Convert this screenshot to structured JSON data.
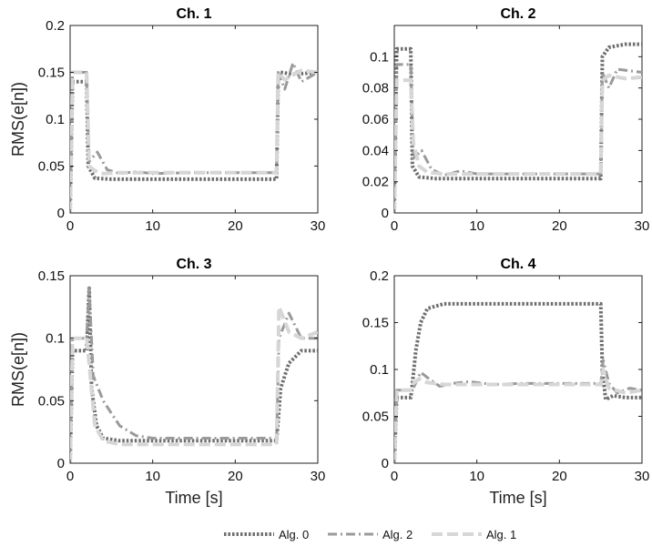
{
  "chart_data": [
    {
      "type": "line",
      "title": "Ch. 1",
      "xlabel": "",
      "ylabel": "RMS(e[n])",
      "xlim": [
        0,
        30
      ],
      "ylim": [
        0,
        0.2
      ],
      "xticks": [
        "0",
        "10",
        "20",
        "30"
      ],
      "xtick_values": [
        0,
        10,
        20,
        30
      ],
      "yticks": [
        "0",
        "0.05",
        "0.1",
        "0.15",
        "0.2"
      ],
      "ytick_values": [
        0,
        0.05,
        0.1,
        0.15,
        0.2
      ],
      "grid": false,
      "series": [
        {
          "name": "Alg. 0",
          "x": [
            0,
            0.3,
            2.0,
            2.2,
            3,
            5,
            10,
            15,
            20,
            25,
            25.2,
            25.5,
            27,
            30
          ],
          "y": [
            0,
            0.14,
            0.14,
            0.05,
            0.037,
            0.036,
            0.036,
            0.036,
            0.036,
            0.036,
            0.14,
            0.15,
            0.148,
            0.15
          ]
        },
        {
          "name": "Alg. 2",
          "x": [
            0,
            0.3,
            2.0,
            2.3,
            3.3,
            4.5,
            6,
            8,
            10,
            15,
            20,
            25,
            25.2,
            26,
            27,
            28,
            30
          ],
          "y": [
            0,
            0.15,
            0.15,
            0.055,
            0.065,
            0.046,
            0.042,
            0.044,
            0.042,
            0.043,
            0.043,
            0.043,
            0.15,
            0.132,
            0.16,
            0.14,
            0.15
          ]
        },
        {
          "name": "Alg. 1",
          "x": [
            0,
            0.3,
            2.0,
            2.3,
            3,
            4,
            6,
            10,
            15,
            20,
            25,
            25.2,
            26,
            28,
            30
          ],
          "y": [
            0,
            0.15,
            0.15,
            0.05,
            0.045,
            0.042,
            0.043,
            0.043,
            0.043,
            0.043,
            0.043,
            0.15,
            0.142,
            0.152,
            0.15
          ]
        }
      ]
    },
    {
      "type": "line",
      "title": "Ch. 2",
      "xlabel": "",
      "ylabel": "",
      "xlim": [
        0,
        30
      ],
      "ylim": [
        0,
        0.12
      ],
      "xticks": [
        "0",
        "10",
        "20",
        "30"
      ],
      "xtick_values": [
        0,
        10,
        20,
        30
      ],
      "yticks": [
        "0",
        "0.02",
        "0.04",
        "0.06",
        "0.08",
        "0.1"
      ],
      "ytick_values": [
        0,
        0.02,
        0.04,
        0.06,
        0.08,
        0.1
      ],
      "grid": false,
      "series": [
        {
          "name": "Alg. 0",
          "x": [
            0,
            0.3,
            2.0,
            2.2,
            3,
            5,
            10,
            15,
            20,
            25,
            25.2,
            26,
            28,
            30
          ],
          "y": [
            0,
            0.105,
            0.105,
            0.03,
            0.023,
            0.022,
            0.022,
            0.022,
            0.022,
            0.022,
            0.1,
            0.106,
            0.108,
            0.108
          ]
        },
        {
          "name": "Alg. 2",
          "x": [
            0,
            0.3,
            2.0,
            2.3,
            3.3,
            4.5,
            6,
            8,
            10,
            15,
            20,
            25,
            25.2,
            26,
            27,
            30
          ],
          "y": [
            0,
            0.095,
            0.095,
            0.035,
            0.04,
            0.028,
            0.024,
            0.027,
            0.025,
            0.025,
            0.025,
            0.025,
            0.09,
            0.08,
            0.092,
            0.09
          ]
        },
        {
          "name": "Alg. 1",
          "x": [
            0,
            0.3,
            2.0,
            2.3,
            3,
            4,
            6,
            10,
            15,
            20,
            25,
            25.2,
            26,
            28,
            30
          ],
          "y": [
            0,
            0.085,
            0.085,
            0.045,
            0.03,
            0.026,
            0.025,
            0.025,
            0.025,
            0.025,
            0.025,
            0.085,
            0.088,
            0.086,
            0.087
          ]
        }
      ]
    },
    {
      "type": "line",
      "title": "Ch. 3",
      "xlabel": "Time [s]",
      "ylabel": "RMS(e[n])",
      "xlim": [
        0,
        30
      ],
      "ylim": [
        0,
        0.15
      ],
      "xticks": [
        "0",
        "10",
        "20",
        "30"
      ],
      "xtick_values": [
        0,
        10,
        20,
        30
      ],
      "yticks": [
        "0",
        "0.05",
        "0.1",
        "0.15"
      ],
      "ytick_values": [
        0,
        0.05,
        0.1,
        0.15
      ],
      "grid": false,
      "series": [
        {
          "name": "Alg. 0",
          "x": [
            0,
            0.3,
            2.0,
            2.3,
            2.6,
            3.2,
            4,
            6,
            10,
            15,
            20,
            25,
            25.5,
            26.5,
            28,
            30
          ],
          "y": [
            0,
            0.09,
            0.09,
            0.14,
            0.06,
            0.03,
            0.02,
            0.018,
            0.018,
            0.018,
            0.018,
            0.018,
            0.06,
            0.08,
            0.09,
            0.09
          ]
        },
        {
          "name": "Alg. 2",
          "x": [
            0,
            0.3,
            2.0,
            2.3,
            2.8,
            4,
            5,
            6,
            8,
            10,
            15,
            20,
            25,
            25.3,
            26.5,
            28,
            30
          ],
          "y": [
            0,
            0.1,
            0.1,
            0.14,
            0.07,
            0.05,
            0.04,
            0.03,
            0.022,
            0.02,
            0.02,
            0.02,
            0.02,
            0.1,
            0.12,
            0.1,
            0.1
          ]
        },
        {
          "name": "Alg. 1",
          "x": [
            0,
            0.3,
            2.0,
            2.3,
            3,
            4,
            6,
            10,
            15,
            20,
            25,
            25.3,
            26.5,
            28,
            30
          ],
          "y": [
            0,
            0.1,
            0.1,
            0.08,
            0.03,
            0.018,
            0.015,
            0.015,
            0.015,
            0.015,
            0.015,
            0.125,
            0.105,
            0.1,
            0.105
          ]
        }
      ]
    },
    {
      "type": "line",
      "title": "Ch. 4",
      "xlabel": "Time [s]",
      "ylabel": "",
      "xlim": [
        0,
        30
      ],
      "ylim": [
        0,
        0.2
      ],
      "xticks": [
        "0",
        "10",
        "20",
        "30"
      ],
      "xtick_values": [
        0,
        10,
        20,
        30
      ],
      "yticks": [
        "0",
        "0.05",
        "0.1",
        "0.15",
        "0.2"
      ],
      "ytick_values": [
        0,
        0.05,
        0.1,
        0.15,
        0.2
      ],
      "grid": false,
      "series": [
        {
          "name": "Alg. 0",
          "x": [
            0,
            0.3,
            2.0,
            2.2,
            2.6,
            3.2,
            4,
            6,
            10,
            15,
            20,
            25,
            25.2,
            25.6,
            26.5,
            28,
            30
          ],
          "y": [
            0,
            0.07,
            0.07,
            0.085,
            0.12,
            0.15,
            0.165,
            0.17,
            0.17,
            0.17,
            0.17,
            0.17,
            0.1,
            0.068,
            0.072,
            0.07,
            0.07
          ]
        },
        {
          "name": "Alg. 2",
          "x": [
            0,
            0.3,
            2.0,
            2.3,
            3.2,
            4.2,
            5.5,
            7,
            9,
            12,
            15,
            20,
            25,
            25.3,
            26,
            27,
            28.5,
            30
          ],
          "y": [
            0,
            0.078,
            0.078,
            0.08,
            0.097,
            0.09,
            0.082,
            0.085,
            0.087,
            0.084,
            0.085,
            0.085,
            0.085,
            0.11,
            0.085,
            0.075,
            0.08,
            0.078
          ]
        },
        {
          "name": "Alg. 1",
          "x": [
            0,
            0.3,
            2.0,
            2.3,
            3,
            4,
            6,
            10,
            15,
            20,
            25,
            25.3,
            26,
            28,
            30
          ],
          "y": [
            0,
            0.078,
            0.078,
            0.085,
            0.09,
            0.086,
            0.084,
            0.084,
            0.084,
            0.084,
            0.084,
            0.1,
            0.08,
            0.075,
            0.078
          ]
        }
      ]
    }
  ],
  "legend": {
    "placement": "bottom-center",
    "entries": [
      {
        "name": "Alg. 0",
        "color": "#6e6e6e",
        "style": "dotted"
      },
      {
        "name": "Alg. 2",
        "color": "#9a9a9a",
        "style": "dash-dot"
      },
      {
        "name": "Alg. 1",
        "color": "#d6d6d6",
        "style": "dashed"
      }
    ]
  },
  "styles": {
    "Alg. 0": {
      "color": "#6e6e6e",
      "dash": "2.5,2",
      "width": 4
    },
    "Alg. 2": {
      "color": "#9a9a9a",
      "dash": "10,4,2,4",
      "width": 3
    },
    "Alg. 1": {
      "color": "#d6d6d6",
      "dash": "12,5",
      "width": 4
    }
  }
}
